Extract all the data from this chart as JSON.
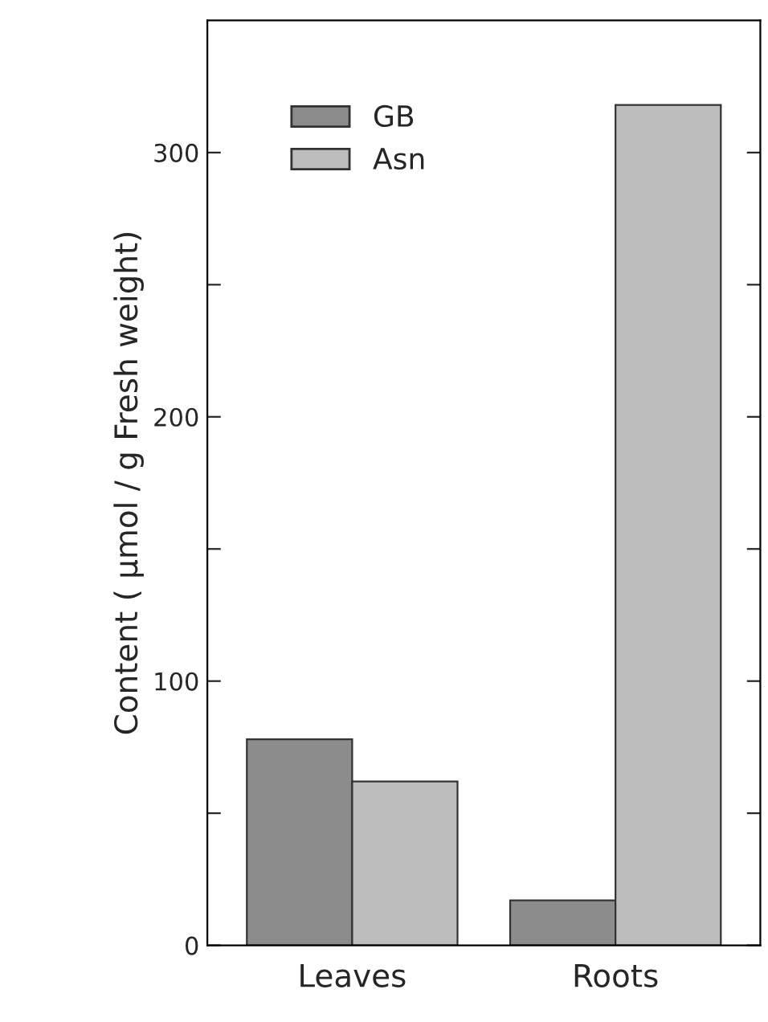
{
  "chart_data": {
    "type": "bar",
    "ylabel": "Content ( µmol / g Fresh weight)",
    "categories": [
      "Leaves",
      "Roots"
    ],
    "series": [
      {
        "name": "GB",
        "color": "#8c8c8c",
        "values": [
          78,
          17
        ]
      },
      {
        "name": "Asn",
        "color": "#bdbdbd",
        "values": [
          62,
          318
        ]
      }
    ],
    "ylim": [
      0,
      350
    ],
    "yticks": [
      0,
      {
        "value": 50,
        "label": null
      },
      100,
      {
        "value": 150,
        "label": null
      },
      200,
      {
        "value": 250,
        "label": null
      },
      300
    ],
    "legend": "top left",
    "grid": false
  }
}
